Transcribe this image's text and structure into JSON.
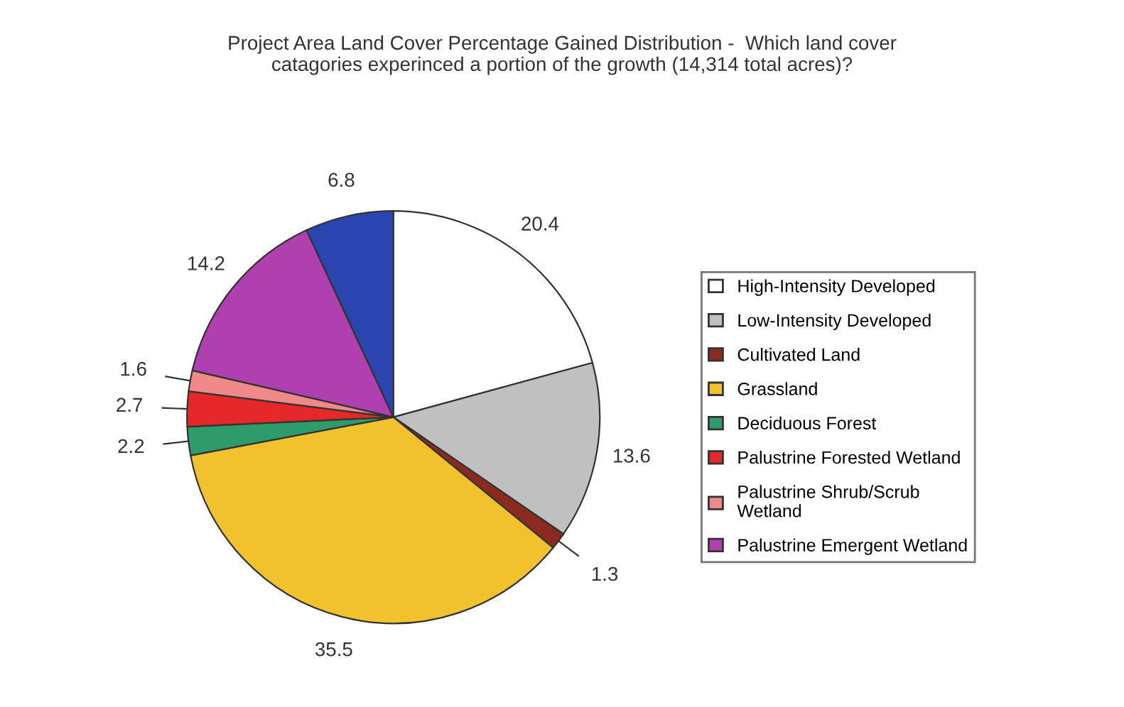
{
  "chart_data": {
    "type": "pie",
    "title": "Project Area Land Cover Percentage Gained Distribution -  Which land cover\ncatagories experinced a portion of the growth (14,314 total acres)?",
    "categories": [
      "High-Intensity Developed",
      "Low-Intensity Developed",
      "Cultivated Land",
      "Grassland",
      "Deciduous Forest",
      "Palustrine Forested Wetland",
      "Palustrine Shrub/Scrub\nWetland",
      "Palustrine Emergent Wetland",
      null
    ],
    "values": [
      20.4,
      13.6,
      1.3,
      35.5,
      2.2,
      2.7,
      1.6,
      14.2,
      6.8
    ],
    "colors": [
      "#ffffff",
      "#c0c0c0",
      "#8b2a1e",
      "#f2c12e",
      "#2e9b6a",
      "#e62828",
      "#f08a8a",
      "#b040b0",
      "#2a44b0"
    ],
    "data_labels": true,
    "legend": "right"
  }
}
